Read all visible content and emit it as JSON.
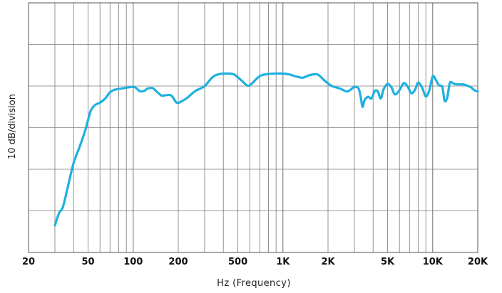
{
  "chart_data": {
    "type": "line",
    "xscale": "log",
    "xlim": [
      20,
      20000
    ],
    "ylim": [
      -40,
      20
    ],
    "grid": true,
    "xlabel": "Hz (Frequency)",
    "ylabel": "10 dB/division",
    "x_ticks": [
      {
        "value": 20,
        "label": "20"
      },
      {
        "value": 50,
        "label": "50"
      },
      {
        "value": 100,
        "label": "100"
      },
      {
        "value": 200,
        "label": "200"
      },
      {
        "value": 500,
        "label": "500"
      },
      {
        "value": 1000,
        "label": "1K"
      },
      {
        "value": 2000,
        "label": "2K"
      },
      {
        "value": 5000,
        "label": "5K"
      },
      {
        "value": 10000,
        "label": "10K"
      },
      {
        "value": 20000,
        "label": "20K"
      }
    ],
    "series": [
      {
        "color": "#1fb0e0",
        "x": [
          30,
          32,
          34,
          37,
          40,
          44,
          48,
          52,
          56,
          60,
          65,
          70,
          75,
          80,
          90,
          100,
          105,
          110,
          118,
          125,
          135,
          145,
          155,
          165,
          180,
          195,
          210,
          230,
          260,
          300,
          340,
          380,
          420,
          470,
          530,
          580,
          620,
          700,
          800,
          900,
          1000,
          1100,
          1200,
          1350,
          1500,
          1700,
          1900,
          2100,
          2400,
          2700,
          3000,
          3200,
          3300,
          3400,
          3500,
          3700,
          3900,
          4100,
          4300,
          4500,
          4700,
          5000,
          5300,
          5600,
          6000,
          6400,
          6800,
          7200,
          7600,
          8000,
          8500,
          9000,
          9500,
          10000,
          10500,
          11000,
          11600,
          12000,
          12500,
          13000,
          13500,
          14000,
          15000,
          16000,
          17000,
          18000,
          19000,
          20000
        ],
        "y": [
          -33.5,
          -30.5,
          -29,
          -23.5,
          -18.5,
          -14.5,
          -10.5,
          -6.0,
          -4.5,
          -4.0,
          -3.0,
          -1.5,
          -0.9,
          -0.7,
          -0.4,
          -0.2,
          -0.5,
          -1.2,
          -1.2,
          -0.6,
          -0.5,
          -1.5,
          -2.3,
          -2.2,
          -2.3,
          -4.0,
          -3.7,
          -2.8,
          -1.2,
          0.0,
          2.2,
          2.9,
          3.0,
          2.8,
          1.3,
          0.1,
          0.6,
          2.4,
          2.9,
          3.0,
          3.0,
          2.8,
          2.4,
          2.0,
          2.6,
          2.8,
          1.3,
          0.1,
          -0.6,
          -1.3,
          -0.2,
          -0.6,
          -2.5,
          -5.0,
          -3.5,
          -2.6,
          -3.0,
          -1.2,
          -1.3,
          -3.0,
          -0.8,
          0.5,
          -0.3,
          -2.0,
          -1.0,
          0.7,
          -0.1,
          -1.7,
          -1.0,
          0.8,
          -0.4,
          -2.5,
          -1.0,
          2.3,
          1.5,
          0.2,
          -0.2,
          -3.5,
          -2.8,
          0.7,
          0.8,
          0.5,
          0.4,
          0.4,
          0.1,
          -0.3,
          -1.0,
          -1.3
        ]
      }
    ]
  }
}
